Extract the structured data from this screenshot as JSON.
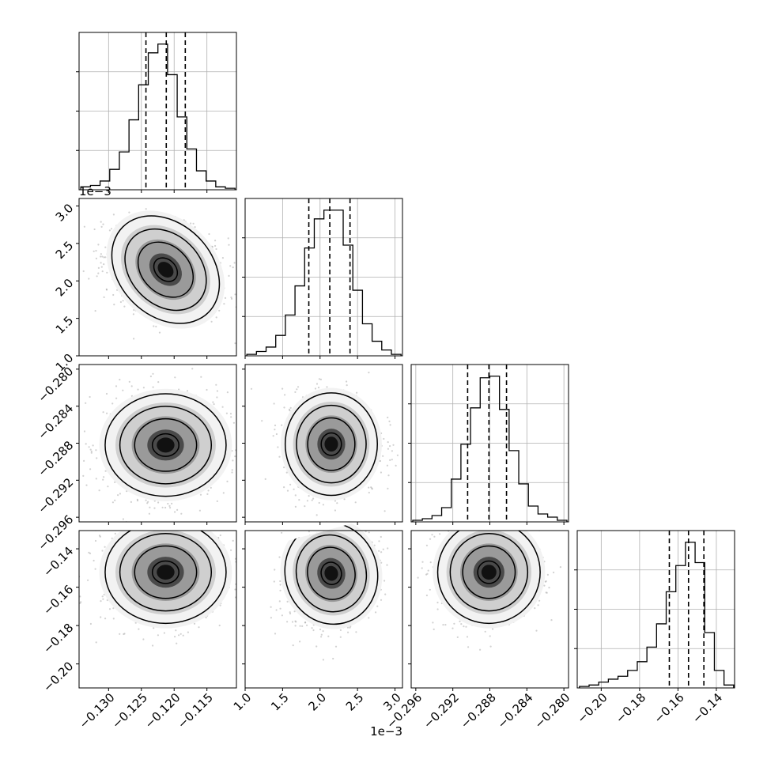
{
  "chart_data": {
    "type": "corner",
    "title": "",
    "parameters": [
      {
        "xlabel": "",
        "range": [
          -0.1345,
          -0.1105
        ],
        "ticks": [
          -0.13,
          -0.125,
          -0.12,
          -0.115
        ],
        "tick_labels": [
          "−0.130",
          "−0.125",
          "−0.120",
          "−0.115"
        ],
        "offset_text": "",
        "quantiles": [
          -0.1243,
          -0.1212,
          -0.1183
        ],
        "histogram": [
          2,
          3,
          6,
          14,
          26,
          48,
          72,
          94,
          100,
          79,
          50,
          28,
          13,
          6,
          2,
          1
        ]
      },
      {
        "xlabel": "",
        "range": [
          1.0,
          3.1
        ],
        "ticks": [
          1.0,
          1.5,
          2.0,
          2.5,
          3.0
        ],
        "tick_labels": [
          "1.0",
          "1.5",
          "2.0",
          "2.5",
          "3.0"
        ],
        "offset_text": "1e−3",
        "quantiles": [
          1.85,
          2.13,
          2.4
        ],
        "histogram": [
          1,
          3,
          6,
          14,
          28,
          48,
          74,
          94,
          100,
          100,
          76,
          45,
          22,
          10,
          4,
          1
        ]
      },
      {
        "xlabel": "",
        "range": [
          -0.2965,
          -0.2795
        ],
        "ticks": [
          -0.296,
          -0.292,
          -0.288,
          -0.284,
          -0.28
        ],
        "tick_labels": [
          "−0.296",
          "−0.292",
          "−0.288",
          "−0.284",
          "−0.280"
        ],
        "offset_text": "",
        "quantiles": [
          -0.2904,
          -0.2881,
          -0.2862
        ],
        "histogram": [
          1,
          2,
          4,
          9,
          27,
          49,
          72,
          91,
          92,
          71,
          45,
          24,
          10,
          5,
          3,
          1
        ]
      },
      {
        "xlabel": "",
        "range": [
          -0.2125,
          -0.1305
        ],
        "ticks": [
          -0.2,
          -0.18,
          -0.16,
          -0.14
        ],
        "tick_labels": [
          "−0.20",
          "−0.18",
          "−0.16",
          "−0.14"
        ],
        "offset_text": "",
        "quantiles": [
          -0.1645,
          -0.1545,
          -0.1465
        ],
        "histogram": [
          1,
          2,
          4,
          6,
          8,
          12,
          18,
          28,
          44,
          66,
          84,
          100,
          86,
          38,
          12,
          2
        ]
      }
    ],
    "pairs": [
      {
        "x": 0,
        "y": 1,
        "center": [
          -0.1213,
          2.15
        ],
        "sigma": [
          0.0045,
          0.3
        ],
        "corr": -0.3,
        "rotation_deg": 45
      },
      {
        "x": 0,
        "y": 2,
        "center": [
          -0.1213,
          -0.2882
        ],
        "sigma": [
          0.0045,
          0.0027
        ],
        "corr": 0.0,
        "rotation_deg": 0
      },
      {
        "x": 1,
        "y": 2,
        "center": [
          2.15,
          -0.2881
        ],
        "sigma": [
          0.3,
          0.0027
        ],
        "corr": 0.0,
        "rotation_deg": 0
      },
      {
        "x": 0,
        "y": 3,
        "center": [
          -0.1213,
          -0.1522
        ],
        "sigma": [
          0.0045,
          0.013
        ],
        "corr": 0.0,
        "rotation_deg": 0
      },
      {
        "x": 1,
        "y": 3,
        "center": [
          2.15,
          -0.1528
        ],
        "sigma": [
          0.3,
          0.013
        ],
        "corr": 0.25,
        "rotation_deg": -15
      },
      {
        "x": 2,
        "y": 3,
        "center": [
          -0.2881,
          -0.1522
        ],
        "sigma": [
          0.0027,
          0.013
        ],
        "corr": 0.1,
        "rotation_deg": 0
      }
    ],
    "contour_levels": [
      0.5,
      1.0,
      1.5,
      2.0
    ],
    "grid": true,
    "legend": "none"
  }
}
